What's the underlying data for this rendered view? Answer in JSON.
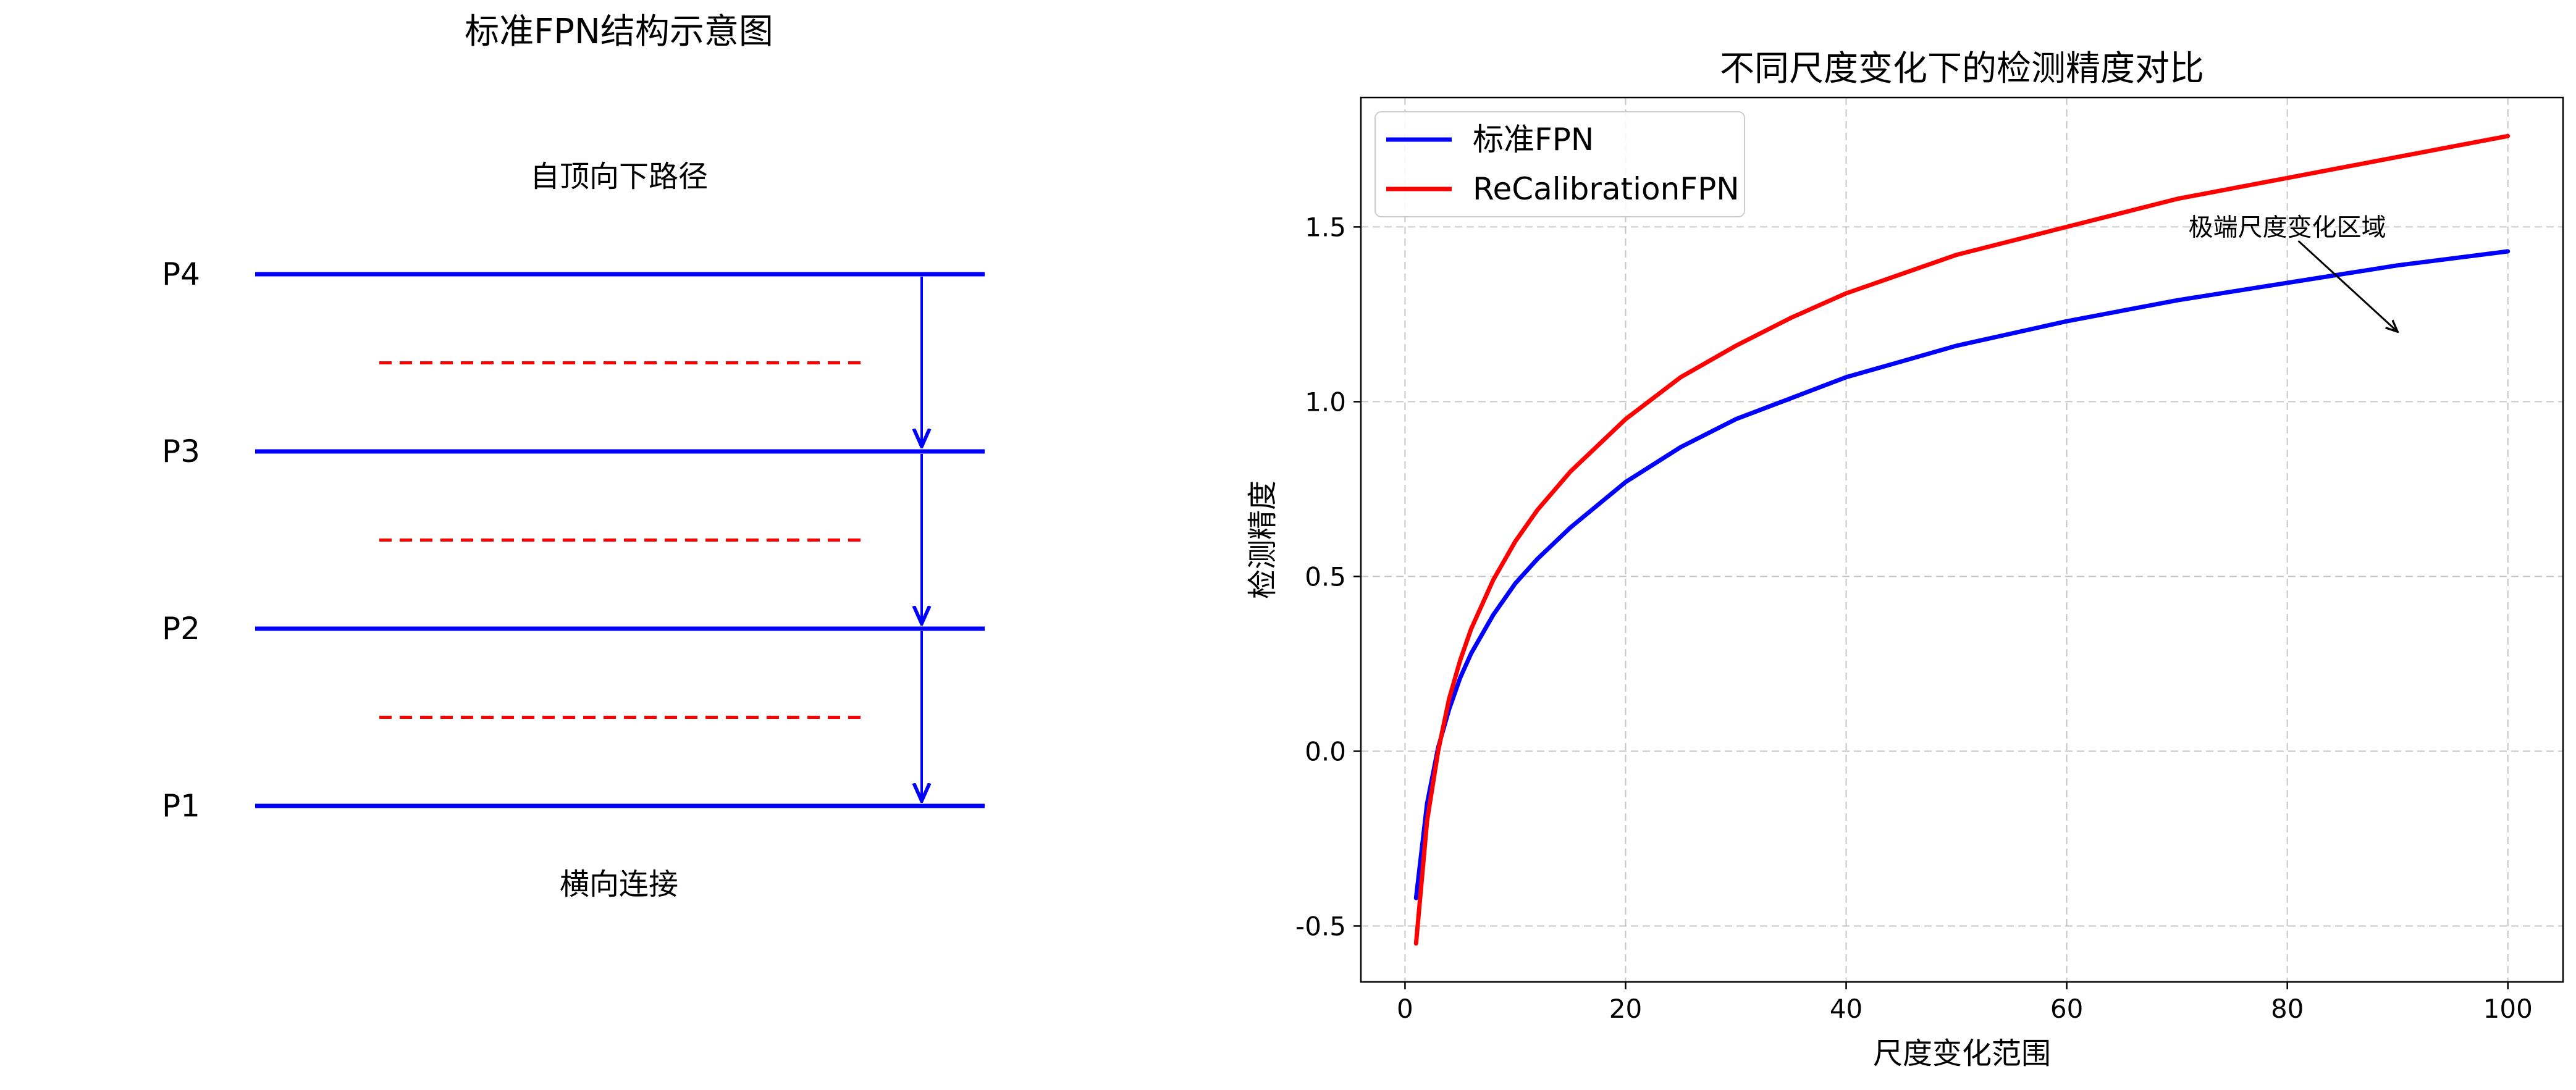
{
  "diagram": {
    "title": "标准FPN结构示意图",
    "top_label": "自顶向下路径",
    "bottom_label": "横向连接",
    "level_labels": [
      "P4",
      "P3",
      "P2",
      "P1"
    ],
    "colors": {
      "level_line": "#0000ff",
      "lateral_line": "#ff0000",
      "arrow": "#0000ff"
    }
  },
  "chart_data": {
    "type": "line",
    "title": "不同尺度变化下的检测精度对比",
    "xlabel": "尺度变化范围",
    "ylabel": "检测精度",
    "xlim": [
      -4,
      105
    ],
    "ylim": [
      -0.66,
      1.87
    ],
    "xticks": [
      0,
      20,
      40,
      60,
      80,
      100
    ],
    "xtick_labels": [
      "0",
      "20",
      "40",
      "60",
      "80",
      "100"
    ],
    "yticks": [
      -0.5,
      0.0,
      0.5,
      1.0,
      1.5
    ],
    "ytick_labels": [
      "-0.5",
      "0.0",
      "0.5",
      "1.0",
      "1.5"
    ],
    "grid": true,
    "legend_position": "top-left",
    "series": [
      {
        "name": "标准FPN",
        "color": "#0000ff",
        "x": [
          1,
          2,
          3,
          4,
          5,
          6,
          8,
          10,
          12,
          15,
          20,
          25,
          30,
          35,
          40,
          50,
          60,
          70,
          80,
          90,
          100
        ],
        "y": [
          -0.42,
          -0.15,
          0.01,
          0.12,
          0.21,
          0.28,
          0.39,
          0.48,
          0.55,
          0.64,
          0.77,
          0.87,
          0.95,
          1.01,
          1.07,
          1.16,
          1.23,
          1.29,
          1.34,
          1.39,
          1.43
        ]
      },
      {
        "name": "ReCalibrationFPN",
        "color": "#ff0000",
        "x": [
          1,
          2,
          3,
          4,
          5,
          6,
          8,
          10,
          12,
          15,
          20,
          25,
          30,
          35,
          40,
          50,
          60,
          70,
          80,
          90,
          100
        ],
        "y": [
          -0.55,
          -0.2,
          0.0,
          0.15,
          0.26,
          0.35,
          0.49,
          0.6,
          0.69,
          0.8,
          0.95,
          1.07,
          1.16,
          1.24,
          1.31,
          1.42,
          1.5,
          1.58,
          1.64,
          1.7,
          1.76
        ]
      }
    ],
    "annotation": {
      "text": "极端尺度变化区域",
      "arrow_from": [
        81,
        1.46
      ],
      "arrow_to": [
        90,
        1.2
      ]
    }
  }
}
